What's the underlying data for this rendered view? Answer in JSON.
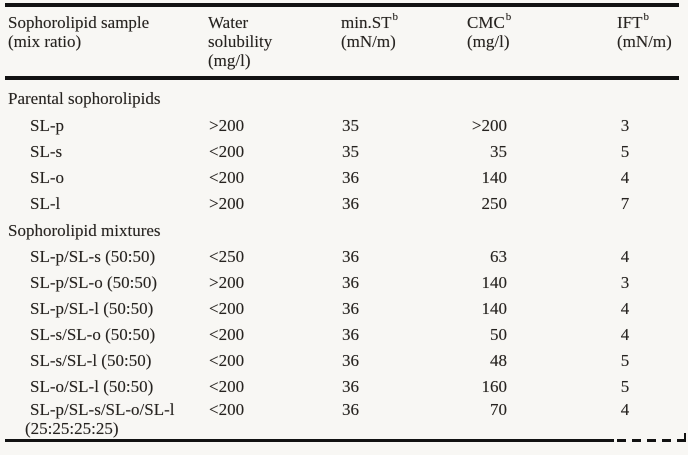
{
  "page": {
    "background_color": "#f8f7f4",
    "text_color": "#262320",
    "rule_color": "#121212"
  },
  "table": {
    "header": {
      "col_sample": {
        "line1": "Sophorolipid sample",
        "line2": "(mix ratio)"
      },
      "col_water": {
        "line1": "Water",
        "line2": "solubility",
        "line3": "(mg/l)"
      },
      "col_min_st": {
        "label": "min.ST",
        "sup": "b",
        "unit": "(mN/m)"
      },
      "col_cmc": {
        "label": "CMC",
        "sup": "b",
        "unit": "(mg/l)"
      },
      "col_ift": {
        "label": "IFT",
        "sup": "b",
        "unit": "(mN/m)"
      }
    },
    "sections": [
      {
        "title": "Parental sophorolipids",
        "rows": [
          {
            "sample": "SL-p",
            "water_solubility": ">200",
            "min_st": "35",
            "cmc": ">200",
            "ift": "3"
          },
          {
            "sample": "SL-s",
            "water_solubility": "<200",
            "min_st": "35",
            "cmc": "35",
            "ift": "5"
          },
          {
            "sample": "SL-o",
            "water_solubility": "<200",
            "min_st": "36",
            "cmc": "140",
            "ift": "4"
          },
          {
            "sample": "SL-l",
            "water_solubility": ">200",
            "min_st": "36",
            "cmc": "250",
            "ift": "7"
          }
        ]
      },
      {
        "title": "Sophorolipid mixtures",
        "rows": [
          {
            "sample": "SL-p/SL-s (50:50)",
            "water_solubility": "<250",
            "min_st": "36",
            "cmc": "63",
            "ift": "4"
          },
          {
            "sample": "SL-p/SL-o (50:50)",
            "water_solubility": ">200",
            "min_st": "36",
            "cmc": "140",
            "ift": "3"
          },
          {
            "sample": "SL-p/SL-l (50:50)",
            "water_solubility": "<200",
            "min_st": "36",
            "cmc": "140",
            "ift": "4"
          },
          {
            "sample": "SL-s/SL-o (50:50)",
            "water_solubility": "<200",
            "min_st": "36",
            "cmc": "50",
            "ift": "4"
          },
          {
            "sample": "SL-s/SL-l (50:50)",
            "water_solubility": "<200",
            "min_st": "36",
            "cmc": "48",
            "ift": "5"
          },
          {
            "sample": "SL-o/SL-l (50:50)",
            "water_solubility": "<200",
            "min_st": "36",
            "cmc": "160",
            "ift": "5"
          },
          {
            "sample": "SL-p/SL-s/SL-o/SL-l",
            "sample_line2": "(25:25:25:25)",
            "water_solubility": "<200",
            "min_st": "36",
            "cmc": "70",
            "ift": "4"
          }
        ]
      }
    ]
  }
}
